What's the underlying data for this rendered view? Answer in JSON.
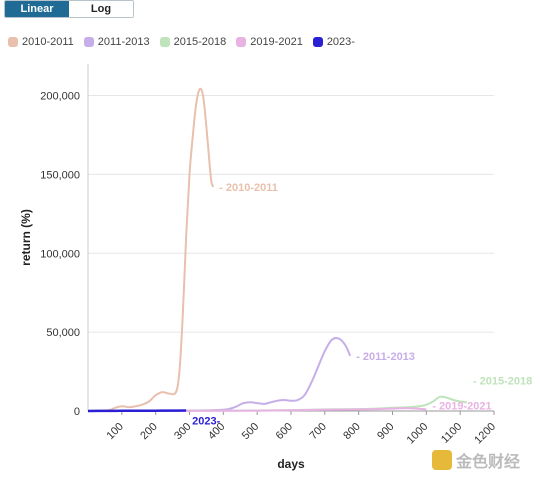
{
  "toggle": {
    "linear_label": "Linear",
    "log_label": "Log",
    "active": "Linear"
  },
  "colors": {
    "2010-2011": "#e8c0ad",
    "2011-2013": "#c6aee8",
    "2015-2018": "#bfe3bb",
    "2019-2021": "#e8b3e3",
    "2023-": "#2b1fd4"
  },
  "watermark": {
    "text": "金色财经"
  },
  "chart_data": {
    "type": "line",
    "title": "",
    "xlabel": "days",
    "ylabel": "return (%)",
    "xlim": [
      0,
      1200
    ],
    "ylim": [
      0,
      220000
    ],
    "xticks": [
      100,
      200,
      300,
      400,
      500,
      600,
      700,
      800,
      900,
      1000,
      1100,
      1200
    ],
    "yticks": [
      0,
      50000,
      100000,
      150000,
      200000
    ],
    "ytick_labels": [
      "0",
      "50,000",
      "100,000",
      "150,000",
      "200,000"
    ],
    "grid": true,
    "legend_position": "top-left",
    "series": [
      {
        "name": "2010-2011",
        "end_label": "- 2010-2011",
        "x": [
          0,
          60,
          80,
          100,
          120,
          140,
          160,
          180,
          200,
          220,
          240,
          260,
          270,
          280,
          290,
          300,
          310,
          320,
          330,
          340,
          350,
          360,
          365,
          370
        ],
        "y": [
          0,
          500,
          2000,
          3000,
          2500,
          3000,
          4000,
          6000,
          10000,
          12000,
          11000,
          12000,
          25000,
          60000,
          110000,
          150000,
          175000,
          195000,
          204000,
          200000,
          180000,
          155000,
          145000,
          142000
        ]
      },
      {
        "name": "2011-2013",
        "end_label": "- 2011-2013",
        "x": [
          0,
          100,
          200,
          300,
          400,
          420,
          440,
          460,
          480,
          500,
          520,
          540,
          560,
          580,
          600,
          620,
          640,
          660,
          680,
          700,
          720,
          740,
          760,
          775
        ],
        "y": [
          0,
          100,
          200,
          300,
          800,
          1500,
          3000,
          5000,
          5500,
          5000,
          4500,
          5500,
          6500,
          7000,
          6500,
          7000,
          10000,
          18000,
          28000,
          38000,
          45000,
          46000,
          42000,
          35000
        ]
      },
      {
        "name": "2015-2018",
        "end_label": "- 2015-2018",
        "x": [
          0,
          200,
          400,
          600,
          700,
          800,
          850,
          900,
          950,
          980,
          1000,
          1020,
          1040,
          1060,
          1080,
          1100,
          1120
        ],
        "y": [
          0,
          100,
          200,
          600,
          1000,
          1200,
          1500,
          2000,
          2500,
          3000,
          4000,
          6000,
          9000,
          8500,
          7000,
          6000,
          5500
        ]
      },
      {
        "name": "2019-2021",
        "end_label": "- 2019-2021",
        "x": [
          0,
          200,
          400,
          500,
          600,
          700,
          800,
          850,
          900,
          950,
          1000
        ],
        "y": [
          0,
          50,
          100,
          200,
          500,
          800,
          1000,
          1200,
          1500,
          1800,
          1000
        ]
      },
      {
        "name": "2023-",
        "end_label": "2023-",
        "x": [
          0,
          50,
          100,
          150,
          200,
          250,
          290
        ],
        "y": [
          0,
          50,
          100,
          150,
          200,
          250,
          300
        ]
      }
    ]
  }
}
